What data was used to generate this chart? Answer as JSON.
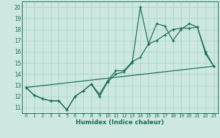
{
  "xlabel": "Humidex (Indice chaleur)",
  "bg_color": "#cce8e0",
  "line_color": "#1a6b5a",
  "grid_color": "#a8cfc4",
  "xlim": [
    -0.5,
    23.5
  ],
  "ylim": [
    10.5,
    20.5
  ],
  "xticks": [
    0,
    1,
    2,
    3,
    4,
    5,
    6,
    7,
    8,
    9,
    10,
    11,
    12,
    13,
    14,
    15,
    16,
    17,
    18,
    19,
    20,
    21,
    22,
    23
  ],
  "yticks": [
    11,
    12,
    13,
    14,
    15,
    16,
    17,
    18,
    19,
    20
  ],
  "line1_x": [
    0,
    1,
    2,
    3,
    4,
    5,
    6,
    7,
    8,
    9,
    10,
    11,
    12,
    13,
    14,
    15,
    16,
    17,
    18,
    19,
    20,
    21,
    22,
    23
  ],
  "line1_y": [
    12.8,
    12.1,
    11.8,
    11.6,
    11.6,
    10.8,
    12.0,
    12.5,
    13.1,
    12.0,
    13.3,
    14.0,
    14.2,
    15.0,
    20.0,
    16.7,
    18.5,
    18.3,
    17.0,
    18.0,
    18.5,
    18.2,
    15.8,
    14.7
  ],
  "line2_x": [
    0,
    1,
    2,
    3,
    4,
    5,
    6,
    7,
    8,
    9,
    10,
    11,
    12,
    13,
    14,
    15,
    16,
    17,
    18,
    19,
    20,
    21,
    22,
    23
  ],
  "line2_y": [
    12.8,
    12.1,
    11.8,
    11.6,
    11.6,
    10.8,
    12.0,
    12.5,
    13.1,
    12.2,
    13.4,
    14.3,
    14.3,
    15.1,
    15.5,
    16.7,
    17.0,
    17.5,
    18.0,
    18.1,
    18.1,
    18.2,
    16.0,
    14.7
  ],
  "line3_x": [
    0,
    23
  ],
  "line3_y": [
    12.8,
    14.7
  ]
}
